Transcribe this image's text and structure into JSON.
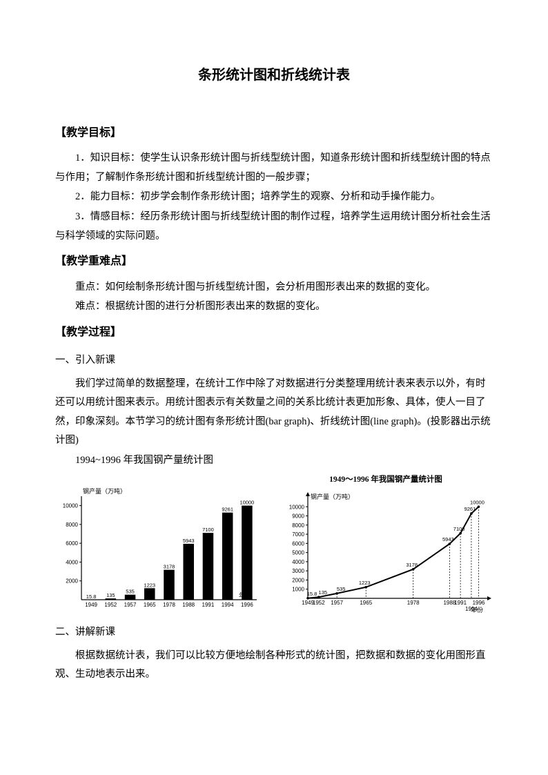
{
  "title": "条形统计图和折线统计表",
  "sections": {
    "goal_head": "【教学目标】",
    "goal1": "1．知识目标：使学生认识条形统计图与折线型统计图，知道条形统计图和折线型统计图的特点与作用；了解制作条形统计图和折线型统计图的一般步骤；",
    "goal2": "2．能力目标：初步学会制作条形统计图；培养学生的观察、分析和动手操作能力。",
    "goal3": "3．情感目标：经历条形统计图与折线型统计图的制作过程，培养学生运用统计图分析社会生活与科学领域的实际问题。",
    "diff_head": "【教学重难点】",
    "diff1": "重点：如何绘制条形统计图与折线型统计图，会分析用图形表出来的数据的变化。",
    "diff2": "难点：根据统计图的进行分析图形表出来的数据的变化。",
    "proc_head": "【教学过程】",
    "p1head": "一、引入新课",
    "p1a": "我们学过简单的数据整理，在统计工作中除了对数据进行分类整理用统计表来表示以外，有时还可以用统计图来表示。用统计图表示有关数量之间的关系比统计表更加形象、具体，使人一目了然，印象深刻。本节学习的统计图有条形统计图(bar graph)、折线统计图(line graph)。(投影器出示统计图)",
    "fig_caption": "1994~1996 年我国钢产量统计图",
    "p2head": "二、讲解新课",
    "p2a": "根据数据统计表，我们可以比较方便地绘制各种形式的统计图，把数据和数据的变化用图形直观、生动地表示出来。"
  },
  "chart": {
    "type_bar": "bar",
    "type_line": "line",
    "line_title": "1949～1996 年我国钢产量统计图",
    "ylabel": "钢产量（万吨）",
    "xlabel": "年份",
    "ylabel_line": "钢产量（万吨）",
    "years": [
      "1949",
      "1952",
      "1957",
      "1965",
      "1978",
      "1988",
      "1991",
      "1994",
      "1996"
    ],
    "values": [
      15.8,
      135,
      535,
      1223,
      3178,
      5943,
      7100,
      9261,
      10000
    ],
    "yticks_bar": [
      2000,
      4000,
      6000,
      8000,
      10000
    ],
    "yticks_line": [
      1000,
      2000,
      3000,
      4000,
      5000,
      6000,
      7000,
      8000,
      9000,
      10000
    ],
    "ylim_bar": [
      0,
      11000
    ],
    "ylim_line": [
      0,
      11000
    ],
    "bar_color": "#000000",
    "line_color": "#000000",
    "background_color": "#ffffff",
    "bar_width": 0.55
  }
}
